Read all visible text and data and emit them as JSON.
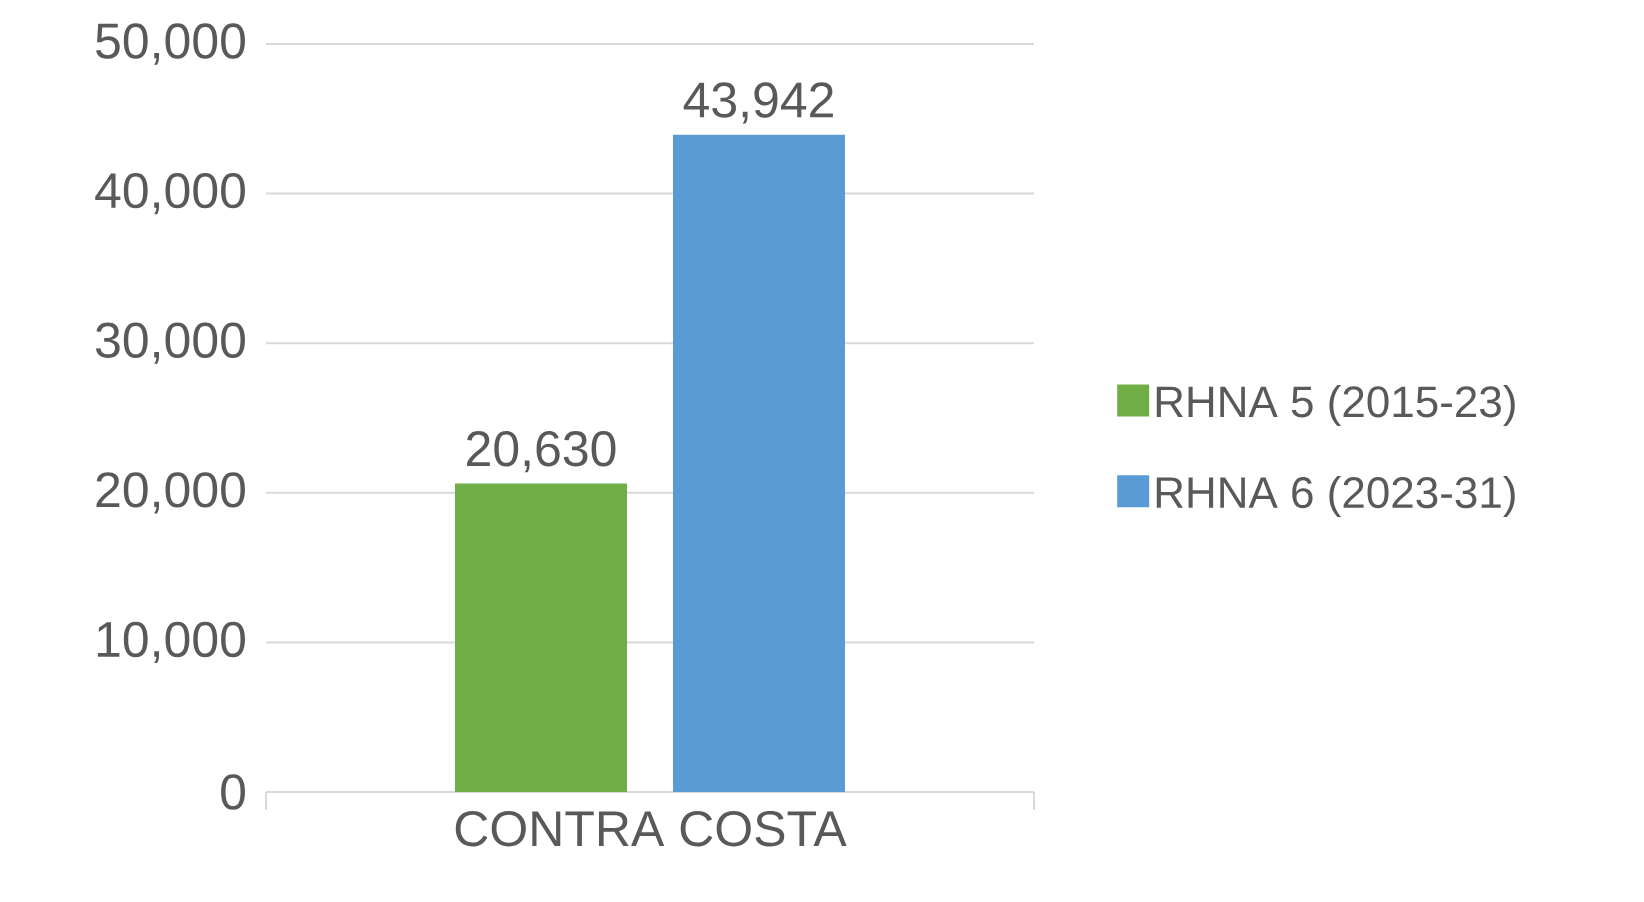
{
  "chart_data": {
    "type": "bar",
    "categories": [
      "CONTRA COSTA"
    ],
    "series": [
      {
        "name": "RHNA 5 (2015-23)",
        "color": "#70ad47",
        "values": [
          20630
        ],
        "value_labels": [
          "20,630"
        ]
      },
      {
        "name": "RHNA 6 (2023-31)",
        "color": "#5b9bd5",
        "values": [
          43942
        ],
        "value_labels": [
          "43,942"
        ]
      }
    ],
    "ylim": [
      0,
      50000
    ],
    "yticks": [
      {
        "value": 0,
        "label": "0"
      },
      {
        "value": 10000,
        "label": "10,000"
      },
      {
        "value": 20000,
        "label": "20,000"
      },
      {
        "value": 30000,
        "label": "30,000"
      },
      {
        "value": 40000,
        "label": "40,000"
      },
      {
        "value": 50000,
        "label": "50,000"
      }
    ],
    "grid": "y",
    "legend": "right"
  }
}
